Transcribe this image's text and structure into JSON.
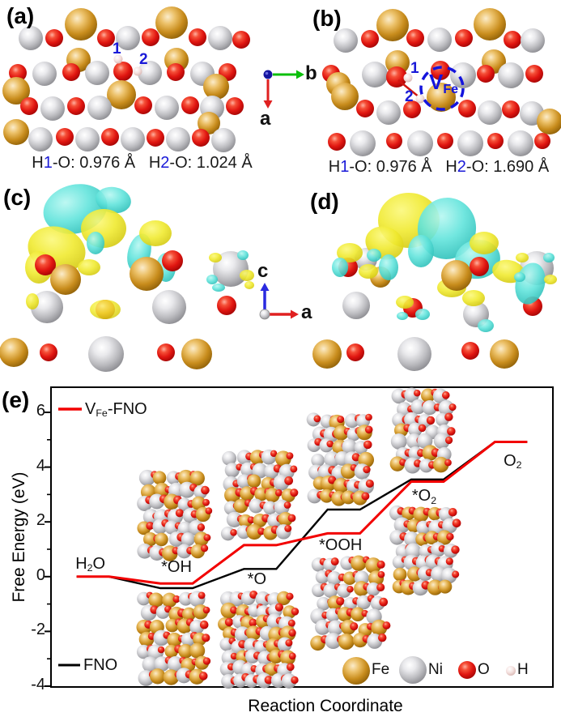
{
  "figure": {
    "panels": {
      "a": {
        "letter": "(a)",
        "site1": "1",
        "site2": "2",
        "caption": [
          [
            "H",
            0
          ],
          [
            "1",
            1
          ],
          [
            "-O: 0.976 Å",
            0
          ],
          [
            "   ",
            0
          ],
          [
            "H",
            0
          ],
          [
            "2",
            1
          ],
          [
            "-O: 1.024 Å",
            0
          ]
        ]
      },
      "b": {
        "letter": "(b)",
        "site1": "1",
        "site2": "2",
        "vacancy_label": "V_{Fe}",
        "caption": [
          [
            "H",
            0
          ],
          [
            "1",
            1
          ],
          [
            "-O: 0.976 Å",
            0
          ],
          [
            "   ",
            0
          ],
          [
            "H",
            0
          ],
          [
            "2",
            1
          ],
          [
            "-O: 1.690 Å",
            0
          ]
        ]
      },
      "c": {
        "letter": "(c)"
      },
      "d": {
        "letter": "(d)"
      },
      "e": {
        "letter": "(e)"
      }
    },
    "axes_markers": {
      "ab": {
        "right": "b",
        "down": "a"
      },
      "cd": {
        "up": "c",
        "right": "a"
      }
    }
  },
  "chart_data": {
    "type": "line",
    "variant": "reaction-free-energy-step-diagram",
    "xlabel": "Reaction Coordinate",
    "ylabel": "Free Energy (eV)",
    "ylim": [
      -4,
      7
    ],
    "yticks": [
      6,
      4,
      2,
      0,
      -2,
      -4
    ],
    "minor_yticks": [
      5,
      3,
      1,
      -1,
      -3
    ],
    "grid": false,
    "categories": [
      "H2O",
      "*OH",
      "*O",
      "*OOH",
      "*O2",
      "O2"
    ],
    "category_labels": [
      "H_{2}O",
      "*OH",
      "*O",
      "*OOH",
      "*O_{2}",
      "O_{2}"
    ],
    "series": [
      {
        "name": "V_{Fe}-FNO",
        "plain_name": "VFe-FNO",
        "color": "#f20000",
        "values": [
          0.0,
          -0.25,
          1.15,
          1.58,
          3.47,
          4.92
        ],
        "legend_position": "top-left"
      },
      {
        "name": "FNO",
        "plain_name": "FNO",
        "color": "#000000",
        "values": [
          0.0,
          -0.42,
          0.28,
          2.45,
          3.55,
          4.92
        ],
        "legend_position": "bottom-left"
      }
    ]
  },
  "atom_legend": [
    {
      "label": "Fe",
      "color": "#c88c1c"
    },
    {
      "label": "Ni",
      "color": "#c6c6c9"
    },
    {
      "label": "O",
      "color": "#e01510"
    },
    {
      "label": "H",
      "color": "#f3dcda"
    }
  ],
  "colors": {
    "annotation_blue": "#1a1ad8",
    "vacancy_circle_blue": "#1414dd",
    "arrow_green": "#0bbf0b",
    "arrow_red": "#e02020",
    "arrow_blue": "#2a2ae0",
    "isosurface_yellow": "#f0ea30",
    "isosurface_cyan": "#4fe0d8",
    "curve_red": "#f20000",
    "curve_black": "#000000"
  }
}
